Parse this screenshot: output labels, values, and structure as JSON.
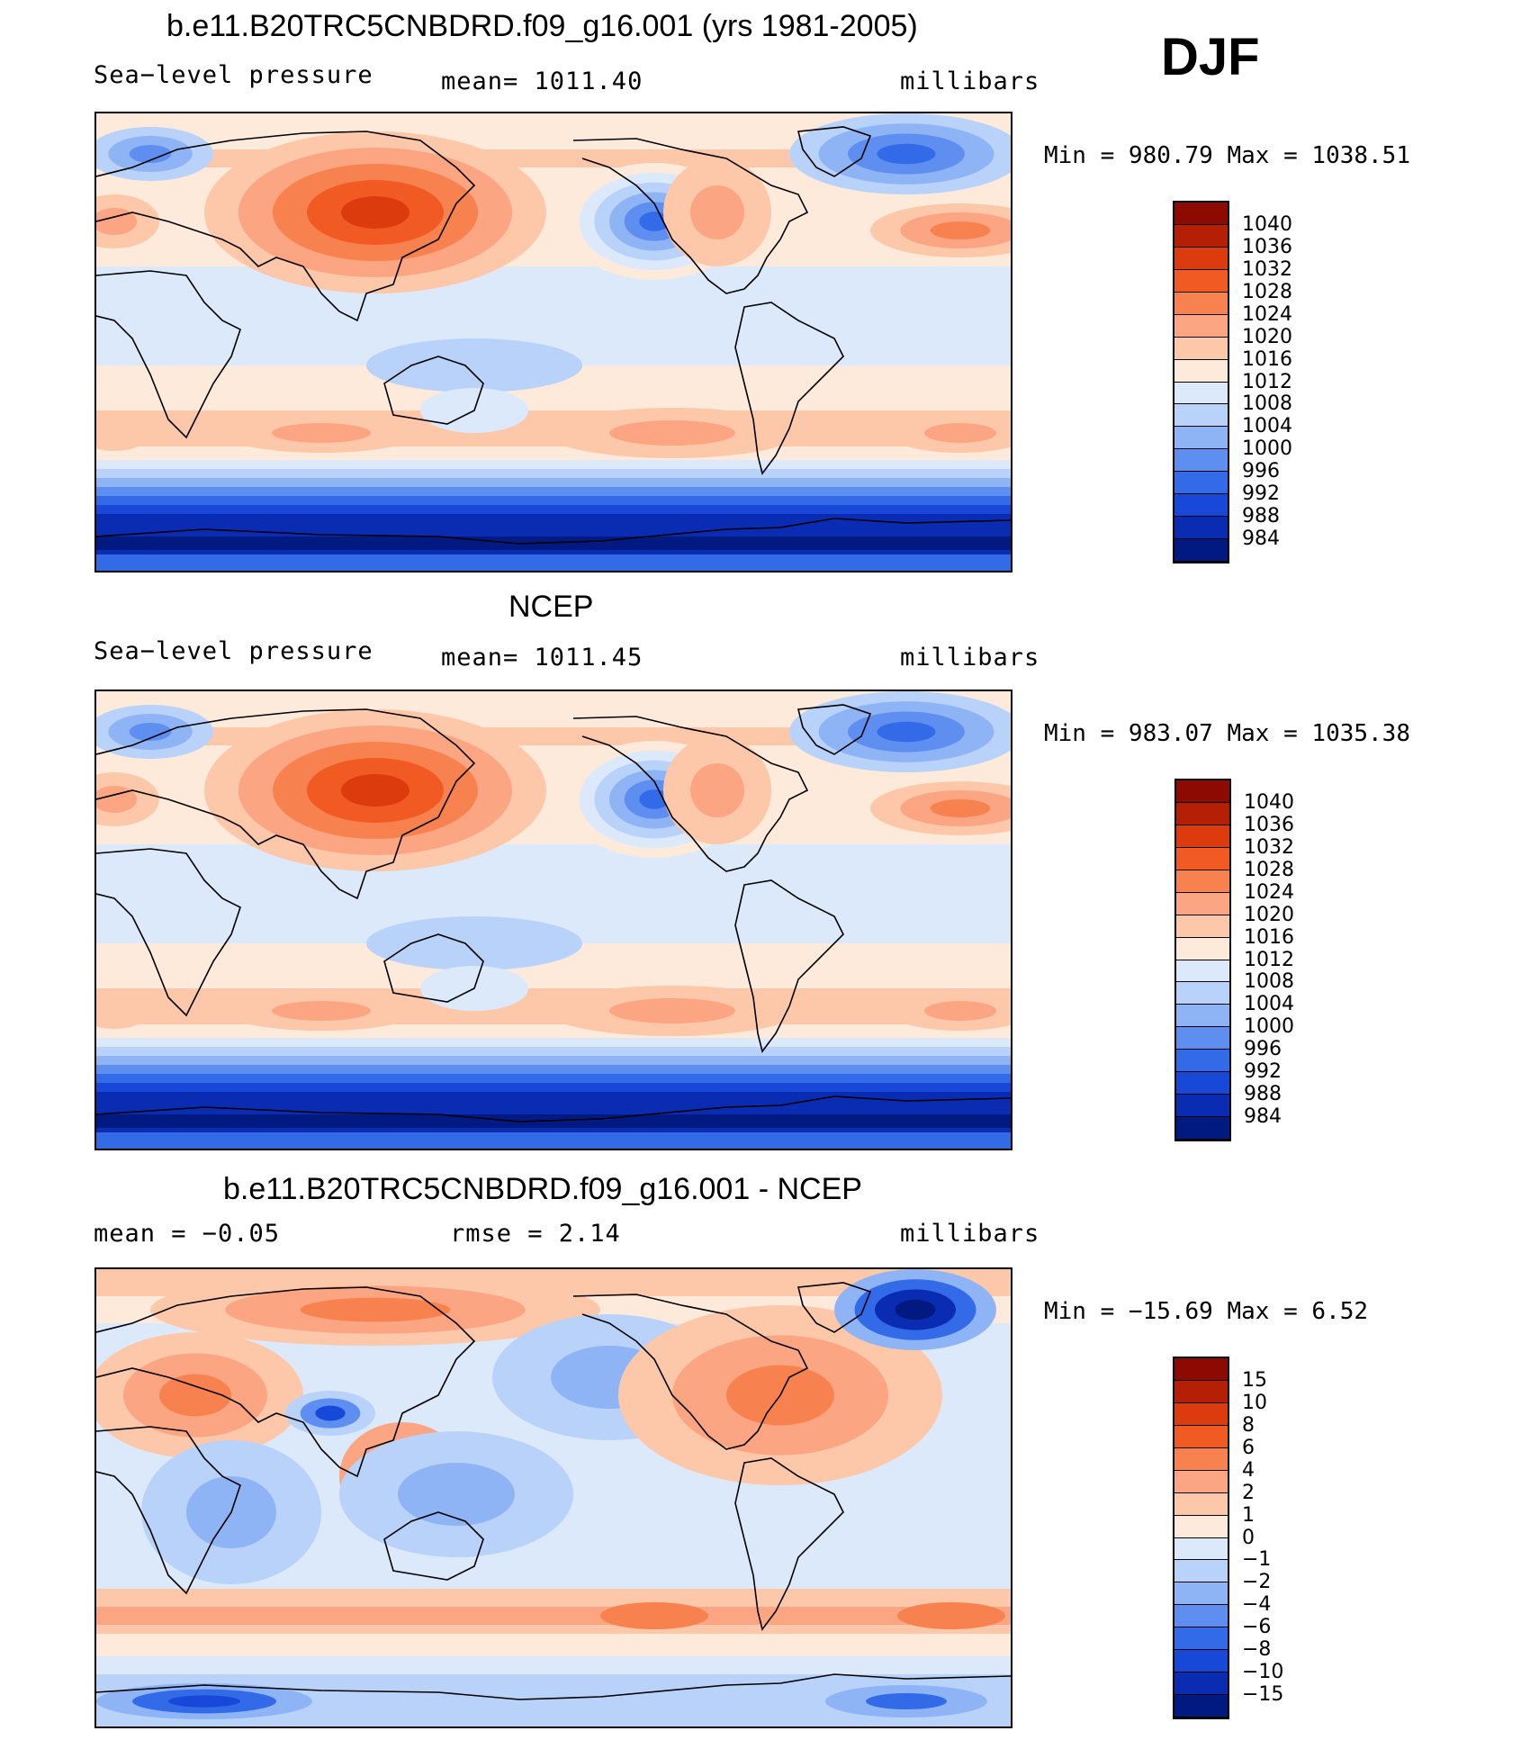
{
  "season": "DJF",
  "colors": {
    "positive": [
      "#fdeadb",
      "#fcc8a9",
      "#fba582",
      "#f8824f",
      "#f25a24",
      "#dc3b0e",
      "#b51f05",
      "#8c0a00"
    ],
    "negative": [
      "#dce9fb",
      "#b8d2f9",
      "#8fb4f5",
      "#5e8ef0",
      "#326ae8",
      "#1748d8",
      "#0a2cb2",
      "#001a82"
    ],
    "land": "#000000"
  },
  "panels": [
    {
      "title": "b.e11.B20TRC5CNBDRD.f09_g16.001 (yrs 1981-2005)",
      "left_label": "Sea−level pressure",
      "center_label": "mean=  1011.40",
      "right_label": "millibars",
      "minmax": "Min  =  980.79  Max  =  1038.51",
      "colorbar_ticks": [
        "1040",
        "1036",
        "1032",
        "1028",
        "1024",
        "1020",
        "1016",
        "1012",
        "1008",
        "1004",
        "1000",
        "996",
        "992",
        "988",
        "984"
      ],
      "colorbar_colors": [
        "#8c0a00",
        "#b51f05",
        "#dc3b0e",
        "#f25a24",
        "#f8824f",
        "#fba582",
        "#fcc8a9",
        "#fdeadb",
        "#dce9fb",
        "#b8d2f9",
        "#8fb4f5",
        "#5e8ef0",
        "#326ae8",
        "#1748d8",
        "#0a2cb2",
        "#001a82"
      ]
    },
    {
      "title": "NCEP",
      "left_label": "Sea−level pressure",
      "center_label": "mean=  1011.45",
      "right_label": "millibars",
      "minmax": "Min  =  983.07  Max  =  1035.38",
      "colorbar_ticks": [
        "1040",
        "1036",
        "1032",
        "1028",
        "1024",
        "1020",
        "1016",
        "1012",
        "1008",
        "1004",
        "1000",
        "996",
        "992",
        "988",
        "984"
      ],
      "colorbar_colors": [
        "#8c0a00",
        "#b51f05",
        "#dc3b0e",
        "#f25a24",
        "#f8824f",
        "#fba582",
        "#fcc8a9",
        "#fdeadb",
        "#dce9fb",
        "#b8d2f9",
        "#8fb4f5",
        "#5e8ef0",
        "#326ae8",
        "#1748d8",
        "#0a2cb2",
        "#001a82"
      ]
    },
    {
      "title": "b.e11.B20TRC5CNBDRD.f09_g16.001 - NCEP",
      "left_label": "mean  =    −0.05",
      "center_label": "rmse  =     2.14",
      "right_label": "millibars",
      "minmax": "Min  =  −15.69  Max  =     6.52",
      "colorbar_ticks": [
        "15",
        "10",
        "8",
        "6",
        "4",
        "2",
        "1",
        "0",
        "−1",
        "−2",
        "−4",
        "−6",
        "−8",
        "−10",
        "−15"
      ],
      "colorbar_colors": [
        "#8c0a00",
        "#b51f05",
        "#dc3b0e",
        "#f25a24",
        "#f8824f",
        "#fba582",
        "#fcc8a9",
        "#fdeadb",
        "#dce9fb",
        "#b8d2f9",
        "#8fb4f5",
        "#5e8ef0",
        "#326ae8",
        "#1748d8",
        "#0a2cb2",
        "#001a82"
      ]
    }
  ]
}
